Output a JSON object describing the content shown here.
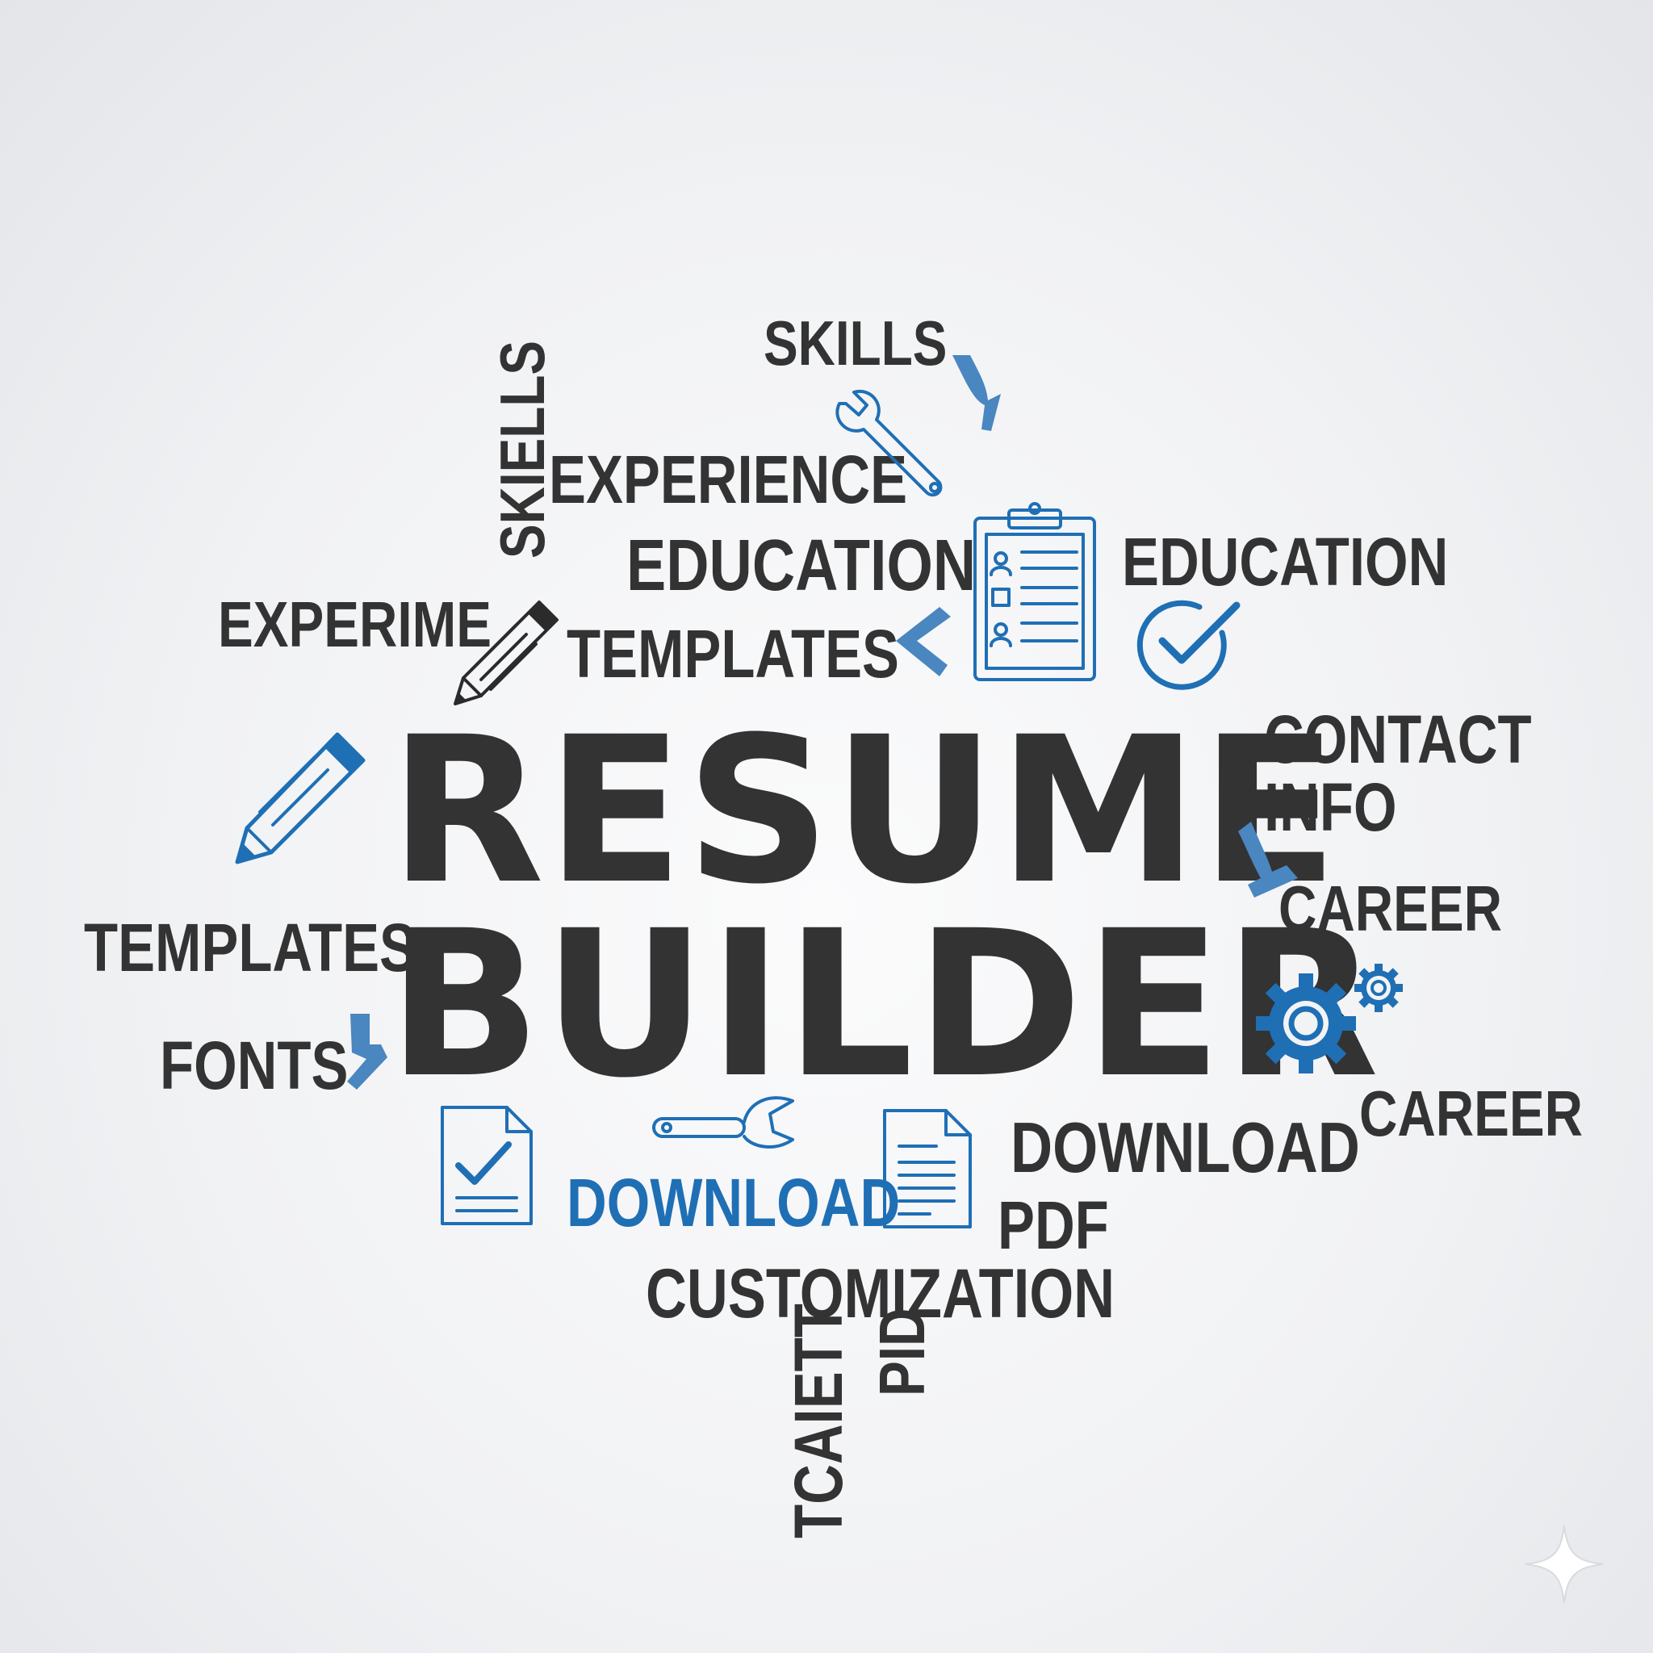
{
  "headline": {
    "line1": "RESUME",
    "line2": "BUILDER"
  },
  "words": {
    "skills_top": "SKILLS",
    "skiells_vertical": "SKIELLS",
    "experience": "EXPERIENCE",
    "education_mid": "EDUCATION",
    "education_right": "EDUCATION",
    "experime": "EXPERIME",
    "templates_mid": "TEMPLATES",
    "contact": "CONTACT",
    "info": "INFO",
    "career_1": "CAREER",
    "templates_left": "TEMPLATES",
    "fonts": "FONTS",
    "career_2": "CAREER",
    "download_blue": "DOWNLOAD",
    "download_dark": "DOWNLOAD",
    "pdf": "PDF",
    "customization": "CUSTOMIZATION",
    "pid_vertical": "PID",
    "tcaiett_vertical": "TCAIETT"
  },
  "colors": {
    "text": "#333333",
    "accent": "#1f6fb5",
    "accent_light": "#4a86c0"
  },
  "icons": [
    "wrench-icon",
    "clipboard-icon",
    "check-circle-icon",
    "pencil-icon",
    "gear-icon",
    "document-check-icon",
    "document-lines-icon",
    "sparkle-icon",
    "chevron-icon"
  ]
}
